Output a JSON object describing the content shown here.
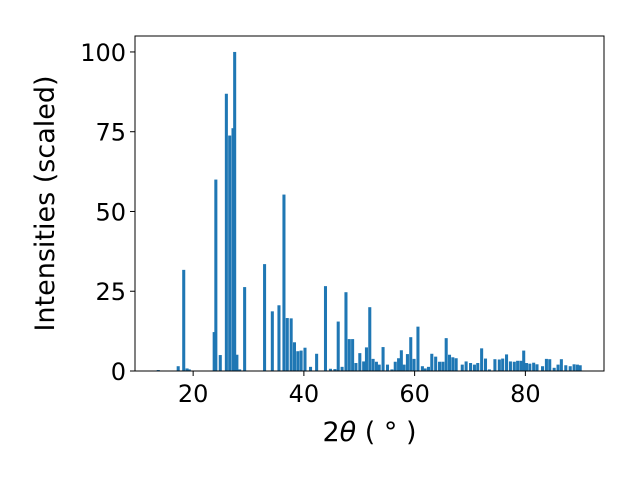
{
  "chart_data": {
    "type": "bar",
    "xlabel_prefix": "2",
    "xlabel_theta": "θ",
    "xlabel_unit": " ( ° )",
    "ylabel": "Intensities (scaled)",
    "xlim": [
      9.5,
      94.2
    ],
    "ylim": [
      0,
      105
    ],
    "xticks": [
      20,
      40,
      60,
      80
    ],
    "yticks": [
      0,
      25,
      50,
      75,
      100
    ],
    "bar_color": "#1f77b4",
    "bar_width_units": 0.55,
    "x": [
      13.7,
      17.3,
      18.3,
      18.9,
      19.3,
      23.8,
      24.1,
      24.9,
      26.0,
      26.6,
      27.2,
      27.5,
      27.9,
      28.4,
      29.3,
      32.9,
      34.3,
      35.5,
      36.4,
      37.0,
      37.7,
      38.3,
      38.9,
      39.5,
      40.2,
      41.2,
      42.3,
      43.9,
      44.8,
      45.6,
      46.2,
      46.9,
      47.6,
      48.2,
      48.8,
      49.4,
      50.1,
      50.8,
      51.3,
      51.9,
      52.5,
      53.1,
      53.6,
      54.3,
      55.1,
      55.9,
      56.5,
      57.1,
      57.6,
      58.1,
      58.7,
      59.3,
      59.9,
      60.6,
      61.4,
      61.9,
      62.5,
      63.1,
      63.8,
      64.5,
      65.1,
      65.7,
      66.3,
      66.9,
      67.5,
      68.6,
      69.3,
      70.1,
      70.8,
      71.4,
      72.1,
      72.8,
      73.5,
      74.5,
      75.3,
      75.9,
      76.6,
      77.3,
      78.0,
      78.6,
      79.2,
      79.7,
      80.2,
      80.8,
      81.5,
      82.1,
      83.1,
      83.8,
      84.4,
      85.2,
      85.9,
      86.5,
      87.3,
      88.1,
      88.8,
      89.4,
      89.9
    ],
    "values": [
      0.3,
      1.5,
      31.7,
      0.8,
      0.5,
      12.2,
      60.0,
      5.0,
      86.9,
      73.8,
      76.1,
      100.0,
      5.1,
      0.5,
      26.3,
      33.5,
      18.7,
      20.6,
      55.3,
      16.6,
      16.5,
      9.0,
      6.2,
      6.4,
      7.3,
      1.3,
      5.4,
      26.6,
      0.7,
      0.6,
      15.5,
      1.3,
      24.7,
      10.0,
      10.0,
      2.5,
      5.6,
      3.0,
      7.4,
      20.0,
      3.8,
      2.9,
      2.0,
      7.5,
      2.0,
      0.5,
      2.9,
      4.0,
      6.5,
      2.0,
      5.3,
      10.6,
      3.8,
      13.9,
      1.5,
      0.8,
      1.3,
      5.4,
      4.5,
      2.9,
      2.9,
      10.3,
      5.1,
      4.3,
      4.0,
      2.0,
      3.0,
      2.5,
      2.0,
      2.5,
      7.1,
      3.9,
      0.5,
      3.7,
      3.6,
      3.9,
      5.2,
      3.0,
      2.9,
      3.2,
      3.2,
      6.4,
      2.5,
      2.3,
      2.6,
      2.1,
      1.5,
      3.8,
      3.7,
      1.0,
      2.0,
      3.7,
      1.8,
      1.5,
      2.1,
      2.0,
      1.8
    ]
  }
}
